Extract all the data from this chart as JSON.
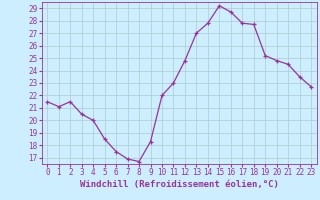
{
  "x": [
    0,
    1,
    2,
    3,
    4,
    5,
    6,
    7,
    8,
    9,
    10,
    11,
    12,
    13,
    14,
    15,
    16,
    17,
    18,
    19,
    20,
    21,
    22,
    23
  ],
  "y": [
    21.5,
    21.1,
    21.5,
    20.5,
    20.0,
    18.5,
    17.5,
    16.9,
    16.7,
    18.3,
    22.0,
    23.0,
    24.8,
    27.0,
    27.8,
    29.2,
    28.7,
    27.8,
    27.7,
    25.2,
    24.8,
    24.5,
    23.5,
    22.7
  ],
  "line_color": "#993399",
  "marker": "+",
  "marker_color": "#993399",
  "bg_color": "#cceeff",
  "grid_color": "#aacccc",
  "xlabel": "Windchill (Refroidissement éolien,°C)",
  "xlim": [
    -0.5,
    23.5
  ],
  "ylim": [
    16.5,
    29.5
  ],
  "yticks": [
    17,
    18,
    19,
    20,
    21,
    22,
    23,
    24,
    25,
    26,
    27,
    28,
    29
  ],
  "xticks": [
    0,
    1,
    2,
    3,
    4,
    5,
    6,
    7,
    8,
    9,
    10,
    11,
    12,
    13,
    14,
    15,
    16,
    17,
    18,
    19,
    20,
    21,
    22,
    23
  ],
  "tick_fontsize": 5.5,
  "xlabel_fontsize": 6.5,
  "axis_color": "#993399",
  "linewidth": 0.9,
  "markersize": 3.5,
  "markeredgewidth": 0.9
}
